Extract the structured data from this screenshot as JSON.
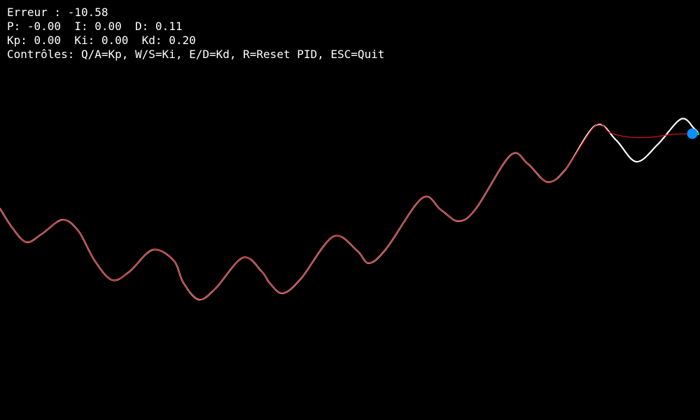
{
  "window": {
    "background": "#000000"
  },
  "hud": {
    "error": "Erreur : -10.58",
    "pid_terms": "P: -0.00  I: 0.00  D: 0.11",
    "gains": "Kp: 0.00  Ki: 0.00  Kd: 0.20",
    "controls": "Contrôles: Q/A=Kp, W/S=Ki, E/D=Kd, R=Reset PID, ESC=Quit"
  },
  "colors": {
    "target_path": "#ffffff",
    "tracked_path": "#d01010",
    "agent": "#0a90ff",
    "agent_marker": "#22cc44"
  },
  "icons": {
    "agent": "blue-dot-icon"
  }
}
